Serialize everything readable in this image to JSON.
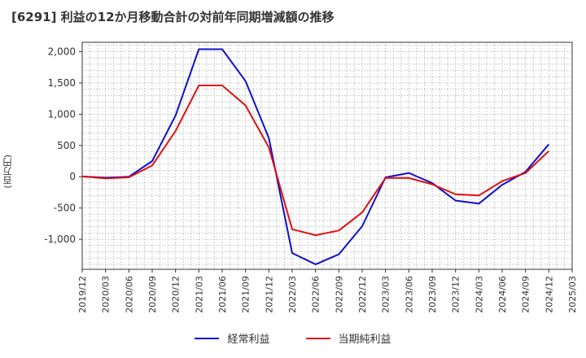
{
  "chart_data": {
    "type": "line",
    "title": "[6291]  利益の12か月移動合計の対前年同期増減額の推移",
    "ylabel": "(百万円)",
    "xlabel": "",
    "ylim": [
      -1480,
      2150
    ],
    "yticks": [
      -1000,
      -500,
      0,
      500,
      1000,
      1500,
      2000
    ],
    "ytick_labels": [
      "-1,000",
      "-500",
      "0",
      "500",
      "1,000",
      "1,500",
      "2,000"
    ],
    "categories": [
      "2019/12",
      "2020/03",
      "2020/06",
      "2020/09",
      "2020/12",
      "2021/03",
      "2021/06",
      "2021/09",
      "2021/12",
      "2022/03",
      "2022/06",
      "2022/09",
      "2022/12",
      "2023/03",
      "2023/06",
      "2023/09",
      "2023/12",
      "2024/03",
      "2024/06",
      "2024/09",
      "2024/12",
      "2025/03"
    ],
    "series": [
      {
        "name": "経常利益",
        "color": "#1010d0",
        "values": [
          5,
          -15,
          0,
          250,
          980,
          2040,
          2040,
          1530,
          620,
          -1220,
          -1400,
          -1240,
          -790,
          -10,
          60,
          -100,
          -380,
          -430,
          -130,
          80,
          520,
          null
        ]
      },
      {
        "name": "当期純利益",
        "color": "#e01010",
        "values": [
          5,
          -25,
          -10,
          180,
          730,
          1460,
          1460,
          1140,
          470,
          -840,
          -935,
          -860,
          -570,
          -20,
          -20,
          -120,
          -280,
          -300,
          -70,
          60,
          410,
          null
        ]
      }
    ],
    "grid": true,
    "legend_position": "bottom-center"
  }
}
